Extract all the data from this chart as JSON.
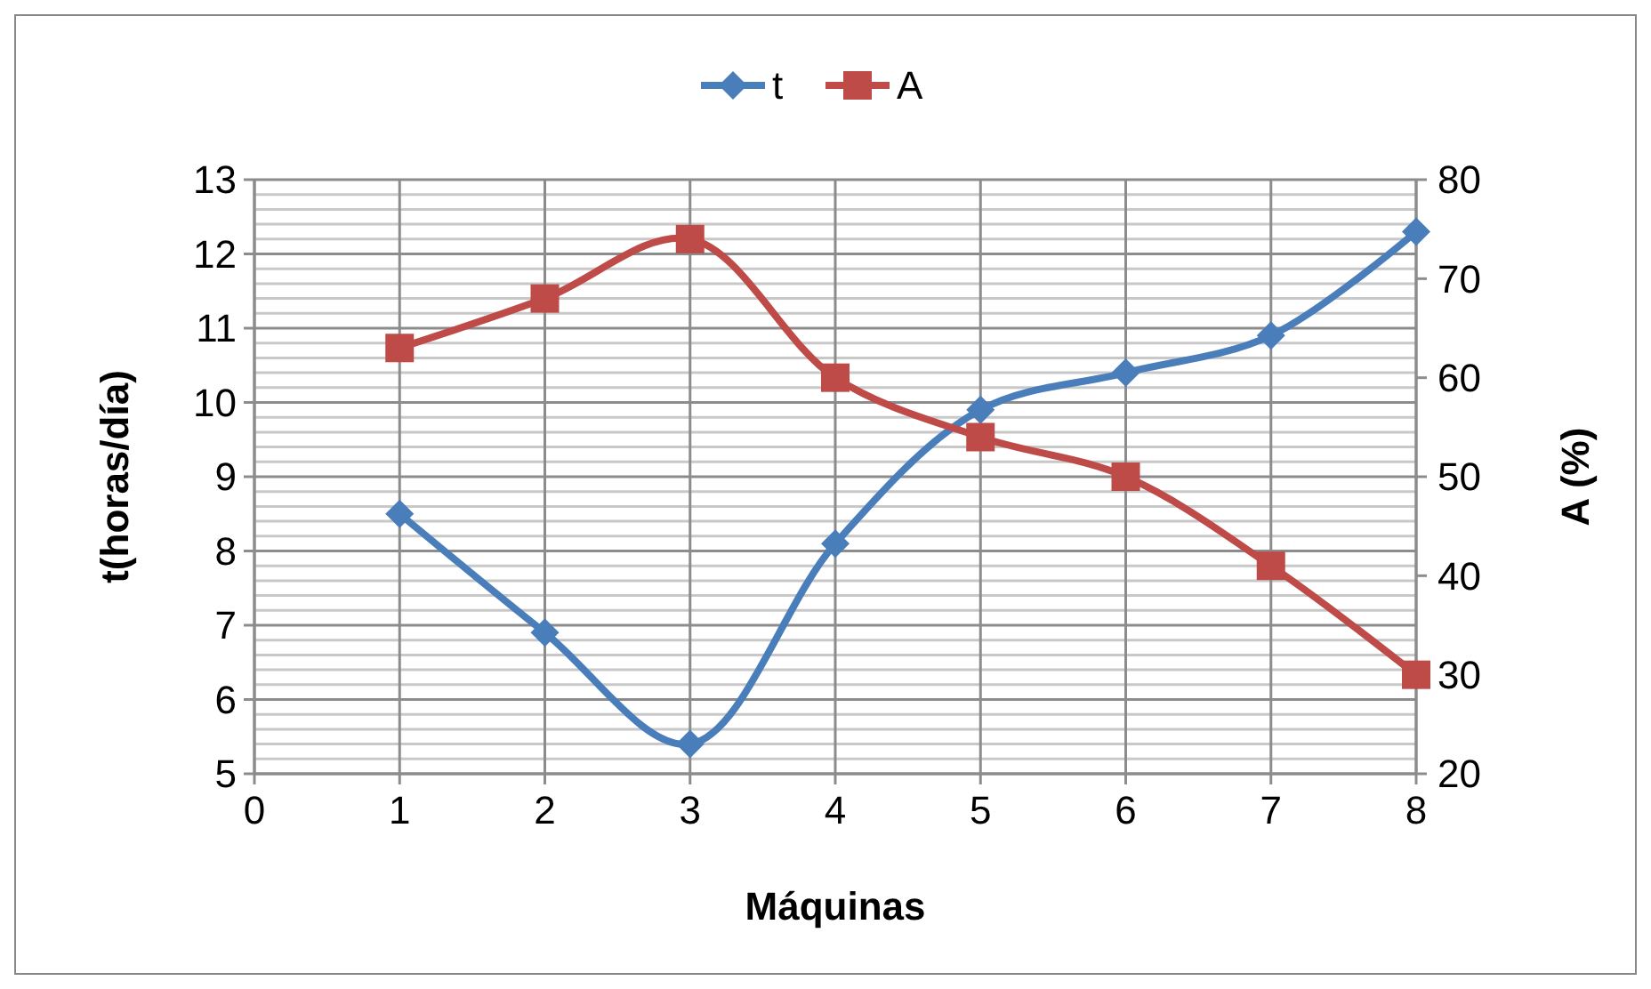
{
  "chart_data": {
    "type": "line",
    "xlabel": "Máquinas",
    "ylabel": "t(horas/día)",
    "y2label": "A (%)",
    "x": [
      1,
      2,
      3,
      4,
      5,
      6,
      7,
      8
    ],
    "series": [
      {
        "name": "t",
        "color": "#4a7ebb",
        "marker": "diamond",
        "values": [
          8.5,
          6.9,
          5.4,
          8.1,
          9.9,
          10.4,
          10.9,
          12.3
        ]
      },
      {
        "name": "A",
        "color": "#be4b48",
        "marker": "square",
        "axis": "y2",
        "values": [
          63,
          68,
          74,
          60,
          54,
          50,
          41,
          30
        ]
      }
    ],
    "xlim": [
      0,
      8
    ],
    "xticks": [
      0,
      1,
      2,
      3,
      4,
      5,
      6,
      7,
      8
    ],
    "ylim": [
      5,
      13
    ],
    "yticks": [
      5,
      6,
      7,
      8,
      9,
      10,
      11,
      12,
      13
    ],
    "y2lim": [
      20,
      80
    ],
    "y2ticks": [
      20,
      30,
      40,
      50,
      60,
      70,
      80
    ],
    "grid": true,
    "legend": "top"
  }
}
